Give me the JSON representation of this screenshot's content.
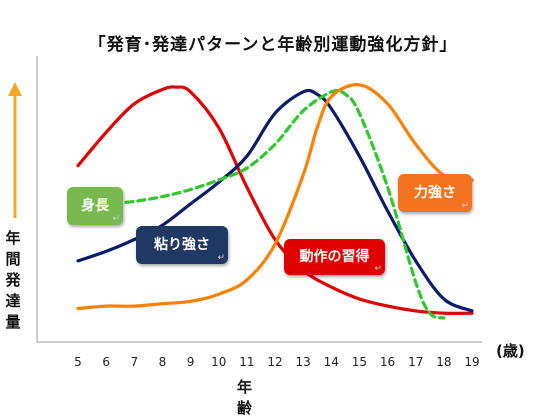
{
  "page": {
    "title": "「発育･発達パターンと年齢別運動強化方針」"
  },
  "chart_data": {
    "type": "line",
    "title": "「発育･発達パターンと年齢別運動強化方針」",
    "ylabel": "年間発達量",
    "xlabel": "年 齢",
    "x_unit": "(歳)",
    "x_ticks": [
      "5",
      "6",
      "7",
      "8",
      "9",
      "10",
      "11",
      "12",
      "13",
      "14",
      "15",
      "16",
      "17",
      "18",
      "19"
    ],
    "ylim": [
      0,
      100
    ],
    "grid": false,
    "series": [
      {
        "name": "動作の習得",
        "color": "#e00000",
        "style": "solid",
        "x": [
          5,
          6,
          7,
          8,
          8.5,
          9,
          10,
          11,
          12,
          13,
          14,
          15,
          16,
          17,
          18,
          19
        ],
        "y": [
          64,
          78,
          90,
          96,
          97,
          95,
          80,
          55,
          33,
          20,
          13,
          8,
          5,
          3,
          2,
          2
        ]
      },
      {
        "name": "粘り強さ",
        "color": "#0d1b6e",
        "style": "solid",
        "x": [
          5,
          6,
          7,
          8,
          9,
          10,
          11,
          12,
          13,
          13.5,
          14,
          15,
          16,
          17,
          18,
          19
        ],
        "y": [
          24,
          28,
          33,
          39,
          48,
          57,
          68,
          86,
          95,
          94,
          88,
          68,
          45,
          24,
          8,
          3
        ]
      },
      {
        "name": "身長",
        "color": "#2ec72e",
        "style": "dashed",
        "x": [
          5,
          6,
          7,
          8,
          9,
          10,
          11,
          12,
          13,
          14,
          14.5,
          15,
          16,
          17,
          17.5,
          18
        ],
        "y": [
          48,
          48,
          49,
          51,
          54,
          58,
          63,
          73,
          87,
          95,
          94,
          86,
          55,
          15,
          2,
          0
        ]
      },
      {
        "name": "力強さ",
        "color": "#ff8000",
        "style": "solid",
        "x": [
          5,
          6,
          7,
          8,
          9,
          10,
          11,
          12,
          13,
          13.5,
          14,
          15,
          16,
          17,
          18,
          19
        ],
        "y": [
          4,
          5,
          5,
          6,
          7,
          10,
          16,
          31,
          60,
          80,
          93,
          98,
          90,
          73,
          60,
          58
        ]
      }
    ],
    "labels": [
      {
        "text": "身長",
        "color": "#77b84f",
        "mark": "↵"
      },
      {
        "text": "粘り強さ",
        "color": "#1f3864",
        "mark": "↵"
      },
      {
        "text": "動作の習得",
        "color": "#e00000",
        "mark": "↵"
      },
      {
        "text": "力強さ",
        "color": "#f47321",
        "mark": "↵"
      }
    ],
    "arrow_color": "#f5a623"
  }
}
